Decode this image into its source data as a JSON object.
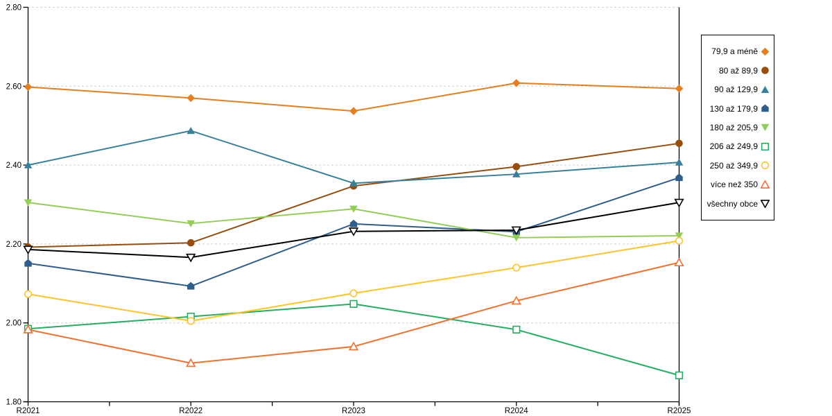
{
  "chart_data": {
    "type": "line",
    "title": "",
    "xlabel": "",
    "ylabel": "",
    "categories": [
      "R2021",
      "R2022",
      "R2023",
      "R2024",
      "R2025"
    ],
    "ylim": [
      1.8,
      2.8
    ],
    "yticks": [
      1.8,
      2.0,
      2.2,
      2.4,
      2.6,
      2.8
    ],
    "ytick_labels": [
      "1.80",
      "2.00",
      "2.20",
      "2.40",
      "2.60",
      "2.80"
    ],
    "grid": "horizontal-dashed",
    "gridline_color": "#BDBDBD",
    "axis_color": "#000000",
    "legend_position": "right",
    "series": [
      {
        "name": "79,9 a méně",
        "color": "#E87D1E",
        "marker": "diamond-filled",
        "values": [
          2.598,
          2.57,
          2.537,
          2.608,
          2.594
        ]
      },
      {
        "name": "80 až 89,9",
        "color": "#974E0D",
        "marker": "circle-filled",
        "values": [
          2.192,
          2.203,
          2.347,
          2.396,
          2.455
        ]
      },
      {
        "name": "90 až 129,9",
        "color": "#38809C",
        "marker": "triangle-up-filled",
        "values": [
          2.4,
          2.487,
          2.354,
          2.377,
          2.407
        ]
      },
      {
        "name": "130 až 179,9",
        "color": "#2E5E8C",
        "marker": "pentagon-filled",
        "values": [
          2.151,
          2.093,
          2.251,
          2.231,
          2.368
        ]
      },
      {
        "name": "180 až 205,9",
        "color": "#92CE58",
        "marker": "triangle-down-filled",
        "values": [
          2.305,
          2.252,
          2.289,
          2.216,
          2.221
        ]
      },
      {
        "name": "206 až 249,9",
        "color": "#24AE61",
        "marker": "square-open",
        "values": [
          1.985,
          2.016,
          2.048,
          1.983,
          1.867
        ]
      },
      {
        "name": "250 až 349,9",
        "color": "#FFC428",
        "marker": "circle-open",
        "values": [
          2.073,
          2.005,
          2.075,
          2.14,
          2.208
        ]
      },
      {
        "name": "více než 350",
        "color": "#F4702E",
        "marker": "triangle-up-open",
        "values": [
          1.983,
          1.898,
          1.94,
          2.056,
          2.153
        ]
      },
      {
        "name": "všechny obce",
        "color": "#000000",
        "marker": "triangle-down-open",
        "values": [
          2.186,
          2.166,
          2.232,
          2.235,
          2.305
        ]
      }
    ]
  }
}
